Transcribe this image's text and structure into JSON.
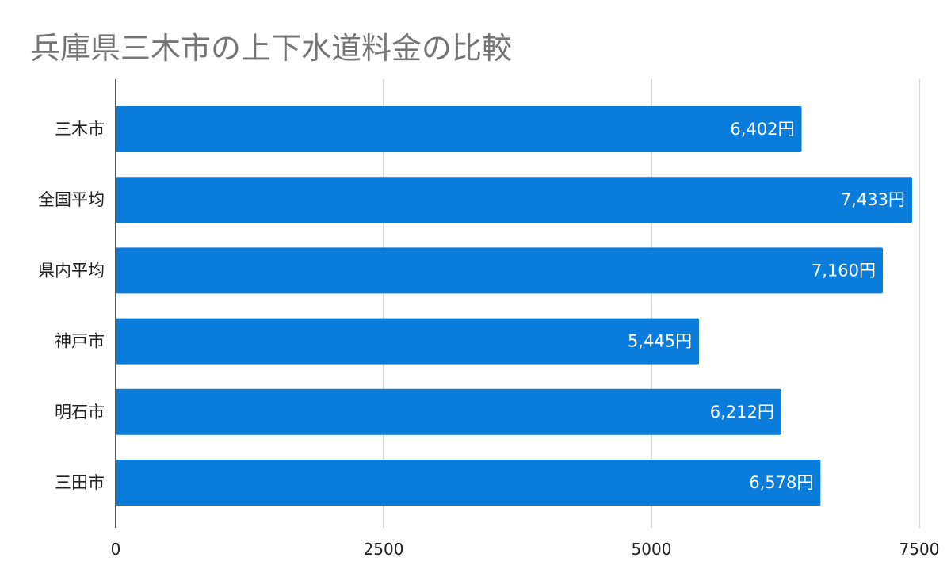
{
  "chart_data": {
    "type": "bar",
    "orientation": "horizontal",
    "title": "兵庫県三木市の上下水道料金の比較",
    "categories": [
      "三木市",
      "全国平均",
      "県内平均",
      "神戸市",
      "明石市",
      "三田市"
    ],
    "values": [
      6402,
      7433,
      7160,
      5445,
      6212,
      6578
    ],
    "data_labels": [
      "6,402円",
      "7,433円",
      "7,160円",
      "5,445円",
      "6,212円",
      "6,578円"
    ],
    "x_ticks": [
      "0",
      "2500",
      "5000",
      "7500"
    ],
    "xlim": [
      0,
      7500
    ],
    "grid": true,
    "legend": "none",
    "colors": {
      "bar": "#0a7cdc",
      "grid": "#cccccc",
      "axis": "#222222",
      "title": "#757575"
    }
  }
}
